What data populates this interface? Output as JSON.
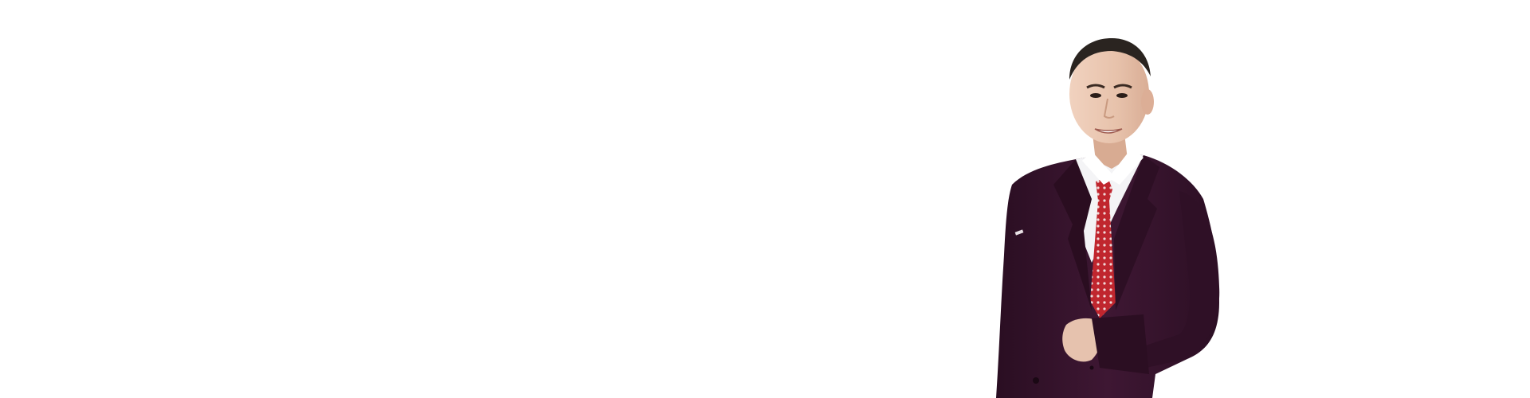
{
  "banner": {
    "background_color": "#ffffff"
  },
  "portrait": {
    "subject": "man-in-suit",
    "suit_color": "#3b1530",
    "tie_color": "#c0262e",
    "shirt_color": "#f4f4f6",
    "skin_color": "#e9c6b0",
    "hair_color": "#2a2420"
  }
}
